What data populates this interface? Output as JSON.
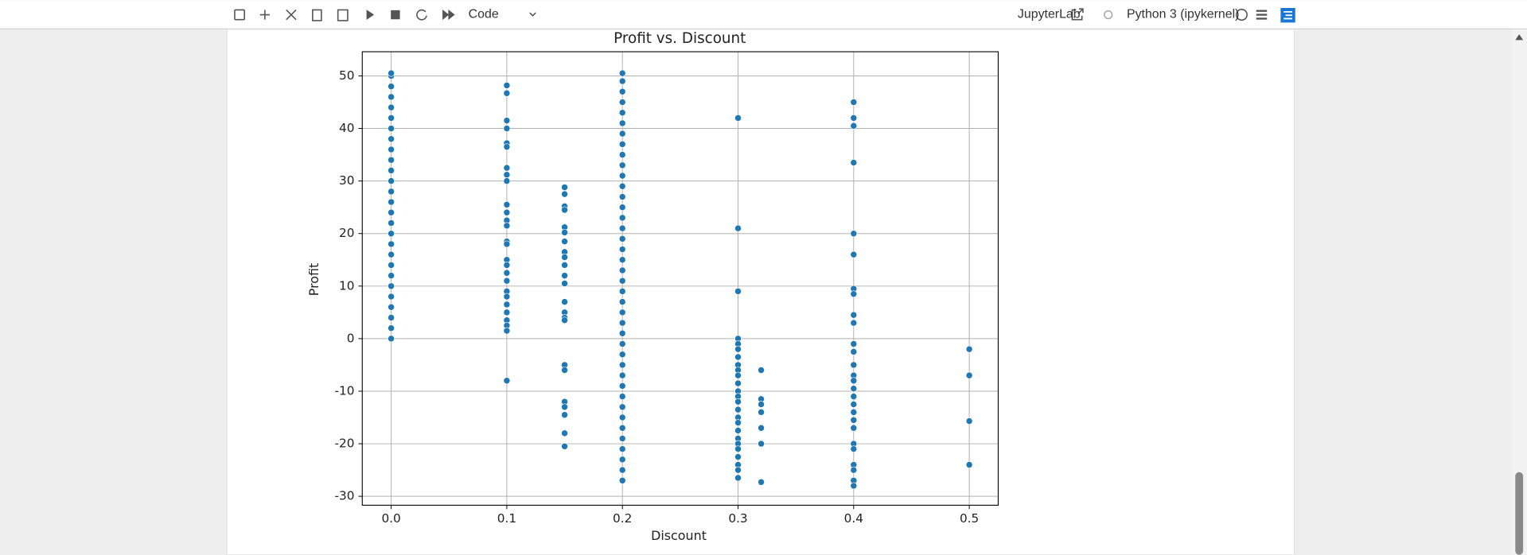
{
  "toolbar": {
    "cell_type": "Code",
    "jupyterlab": "JupyterLab",
    "kernel": "Python 3 (ipykernel)"
  },
  "chart_data": {
    "type": "scatter",
    "title": "Profit vs. Discount",
    "x_label": "Discount",
    "y_label": "Profit",
    "color": "#1f77b4",
    "grid": true,
    "xlim": [
      -0.025,
      0.525
    ],
    "ylim": [
      -31.7,
      54.6
    ],
    "xticks": [
      {
        "value": 0,
        "label": "0.0"
      },
      {
        "value": 0.1,
        "label": "0.1"
      },
      {
        "value": 0.2,
        "label": "0.2"
      },
      {
        "value": 0.3,
        "label": "0.3"
      },
      {
        "value": 0.4,
        "label": "0.4"
      },
      {
        "value": 0.5,
        "label": "0.5"
      }
    ],
    "yticks": [
      -30,
      -20,
      -10,
      0,
      10,
      20,
      30,
      40,
      50
    ],
    "x": [
      0,
      0,
      0,
      0,
      0,
      0,
      0,
      0,
      0,
      0,
      0,
      0,
      0,
      0,
      0,
      0,
      0,
      0,
      0,
      0,
      0,
      0,
      0,
      0,
      0,
      0,
      0,
      0.1,
      0.1,
      0.1,
      0.1,
      0.1,
      0.1,
      0.1,
      0.1,
      0.1,
      0.1,
      0.1,
      0.1,
      0.1,
      0.1,
      0.1,
      0.1,
      0.1,
      0.1,
      0.1,
      0.1,
      0.1,
      0.1,
      0.1,
      0.1,
      0.1,
      0.1,
      0.1,
      0.15,
      0.15,
      0.15,
      0.15,
      0.15,
      0.15,
      0.15,
      0.15,
      0.15,
      0.15,
      0.15,
      0.15,
      0.15,
      0.15,
      0.15,
      0.15,
      0.15,
      0.15,
      0.15,
      0.15,
      0.15,
      0.15,
      0.15,
      0.2,
      0.2,
      0.2,
      0.2,
      0.2,
      0.2,
      0.2,
      0.2,
      0.2,
      0.2,
      0.2,
      0.2,
      0.2,
      0.2,
      0.2,
      0.2,
      0.2,
      0.2,
      0.2,
      0.2,
      0.2,
      0.2,
      0.2,
      0.2,
      0.2,
      0.2,
      0.2,
      0.2,
      0.2,
      0.2,
      0.2,
      0.2,
      0.2,
      0.2,
      0.2,
      0.2,
      0.2,
      0.2,
      0.2,
      0.2,
      0.3,
      0.3,
      0.3,
      0.3,
      0.3,
      0.3,
      0.3,
      0.3,
      0.3,
      0.3,
      0.3,
      0.3,
      0.3,
      0.3,
      0.3,
      0.3,
      0.3,
      0.3,
      0.3,
      0.3,
      0.3,
      0.3,
      0.3,
      0.3,
      0.3,
      0.32,
      0.32,
      0.32,
      0.32,
      0.32,
      0.32,
      0.32,
      0.4,
      0.4,
      0.4,
      0.4,
      0.4,
      0.4,
      0.4,
      0.4,
      0.4,
      0.4,
      0.4,
      0.4,
      0.4,
      0.4,
      0.4,
      0.4,
      0.4,
      0.4,
      0.4,
      0.4,
      0.4,
      0.4,
      0.4,
      0.4,
      0.4,
      0.4,
      0.4,
      0.5,
      0.5,
      0.5,
      0.5
    ],
    "y": [
      0,
      2,
      4,
      6,
      8,
      10,
      12,
      14,
      16,
      18,
      20,
      22,
      24,
      26,
      28,
      30,
      32,
      34,
      36,
      38,
      40,
      42,
      44,
      46,
      48,
      50,
      50.5,
      48.2,
      46.7,
      41.5,
      40,
      37.2,
      36.5,
      32.5,
      31.2,
      30,
      25.5,
      24,
      22.5,
      21.5,
      18.5,
      18,
      15,
      14,
      12.5,
      11,
      9,
      8,
      6.5,
      5,
      3.5,
      2.5,
      1.5,
      -8,
      28.8,
      27.5,
      25.2,
      24.5,
      21.2,
      20.2,
      18.5,
      16.5,
      15.5,
      14,
      12,
      10.5,
      7,
      5,
      4,
      3.5,
      -5,
      -6,
      -12,
      -13,
      -14.5,
      -18,
      -20.5,
      50.5,
      49,
      47,
      45,
      43,
      41,
      39,
      37,
      35,
      33,
      31,
      29,
      27,
      25,
      23,
      21,
      19,
      17,
      15,
      13,
      11,
      9,
      7,
      5,
      3,
      1,
      -1,
      -3,
      -5,
      -7,
      -9,
      -11,
      -13,
      -15,
      -17,
      -19,
      -21,
      -23,
      -25,
      -27,
      42,
      21,
      9,
      0,
      -1,
      -2,
      -3.5,
      -5,
      -6,
      -7,
      -8.5,
      -10,
      -11,
      -12,
      -13.5,
      -15,
      -16,
      -17.5,
      -19,
      -20,
      -21,
      -22.5,
      -24,
      -25,
      -26.5,
      -6,
      -11.5,
      -12.5,
      -14,
      -17,
      -20,
      -27.3,
      45,
      42,
      40.5,
      33.5,
      20,
      16,
      9.5,
      8.5,
      4.5,
      3,
      -1,
      -2.5,
      -5,
      -7,
      -8,
      -9.5,
      -11,
      -12.5,
      -14,
      -15.5,
      -17,
      -20,
      -21,
      -24,
      -25,
      -27,
      -28,
      -2,
      -7,
      -15.7,
      -24
    ]
  }
}
